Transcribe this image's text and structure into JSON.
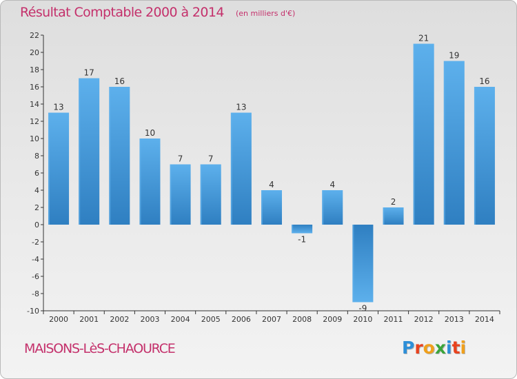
{
  "header": {
    "title": "Résultat Comptable 2000 à 2014",
    "unit": "(en milliers d'€)"
  },
  "footer": {
    "commune": "MAISONS-LèS-CHAOURCE",
    "logo_letters": [
      "P",
      "r",
      "o",
      "x",
      "i",
      "t",
      "i"
    ],
    "logo_colors": [
      "#2d8fd8",
      "#e8421e",
      "#f0a01c",
      "#3aa43a",
      "#2d8fd8",
      "#e8421e",
      "#f0a01c"
    ]
  },
  "chart_data": {
    "type": "bar",
    "categories": [
      "2000",
      "2001",
      "2002",
      "2003",
      "2004",
      "2005",
      "2006",
      "2007",
      "2008",
      "2009",
      "2010",
      "2011",
      "2012",
      "2013",
      "2014"
    ],
    "values": [
      13,
      17,
      16,
      10,
      7,
      7,
      13,
      4,
      -1,
      4,
      -9,
      2,
      21,
      19,
      16
    ],
    "ylim": [
      -10,
      22
    ],
    "yticks": [
      22,
      20,
      18,
      16,
      14,
      12,
      10,
      8,
      6,
      4,
      2,
      0,
      -2,
      -4,
      -6,
      -8,
      -10
    ],
    "grid": false,
    "bar_color": "#3f94d6",
    "bar_highlight": "#62b3ec",
    "axis_color": "#333333",
    "label_color": "#333333"
  }
}
